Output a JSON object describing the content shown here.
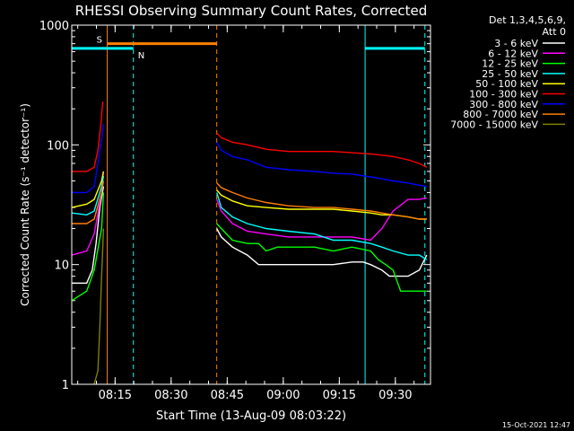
{
  "chart_data": {
    "type": "line",
    "title": "RHESSI Observing Summary Count Rates, Corrected",
    "xlabel": "Start Time (13-Aug-09 08:03:22)",
    "ylabel": "Corrected Count Rate (s⁻¹ detector⁻¹)",
    "y_scale": "log",
    "ylim": [
      1,
      1000
    ],
    "xlim_minutes_after_start": [
      0,
      96
    ],
    "x_ticks": [
      {
        "label": "08:15",
        "minutes": 11.6
      },
      {
        "label": "08:30",
        "minutes": 26.6
      },
      {
        "label": "08:45",
        "minutes": 41.6
      },
      {
        "label": "09:00",
        "minutes": 56.6
      },
      {
        "label": "09:15",
        "minutes": 71.6
      },
      {
        "label": "09:30",
        "minutes": 86.6
      }
    ],
    "y_ticks": [
      {
        "label": "1",
        "value": 1
      },
      {
        "label": "10",
        "value": 10
      },
      {
        "label": "100",
        "value": 100
      },
      {
        "label": "1000",
        "value": 1000
      }
    ],
    "legend_header": [
      "Det 1,3,4,5,6,9,",
      "Att 0"
    ],
    "legend_position": "top-right (outside plot)",
    "data_gap_minutes": [
      9.5,
      38.8
    ],
    "series": [
      {
        "name": "3 - 6 keV",
        "color": "#ffffff",
        "points": [
          [
            0,
            7
          ],
          [
            4,
            7
          ],
          [
            5.5,
            9
          ],
          [
            6.5,
            15
          ],
          [
            7.5,
            30
          ],
          [
            8.5,
            45
          ],
          [
            38.8,
            20
          ],
          [
            40,
            17
          ],
          [
            43,
            14
          ],
          [
            47,
            12
          ],
          [
            50,
            10
          ],
          [
            55,
            10
          ],
          [
            60,
            10
          ],
          [
            65,
            10
          ],
          [
            70,
            10
          ],
          [
            75,
            10.5
          ],
          [
            78,
            10.5
          ],
          [
            80,
            10
          ],
          [
            83,
            9
          ],
          [
            85,
            8
          ],
          [
            88,
            8
          ],
          [
            90,
            8
          ],
          [
            93,
            9
          ],
          [
            95,
            12
          ]
        ]
      },
      {
        "name": "6 - 12 keV",
        "color": "#ff00ff",
        "points": [
          [
            0,
            12
          ],
          [
            4,
            13
          ],
          [
            6,
            18
          ],
          [
            8,
            40
          ],
          [
            8.5,
            60
          ],
          [
            38.8,
            35
          ],
          [
            40,
            28
          ],
          [
            43,
            22
          ],
          [
            47,
            19
          ],
          [
            52,
            18
          ],
          [
            58,
            17
          ],
          [
            65,
            17
          ],
          [
            70,
            17
          ],
          [
            75,
            17
          ],
          [
            80,
            16
          ],
          [
            83,
            20
          ],
          [
            86,
            28
          ],
          [
            90,
            35
          ],
          [
            93,
            35
          ],
          [
            95,
            36
          ]
        ]
      },
      {
        "name": "12 - 25 keV",
        "color": "#00ff00",
        "points": [
          [
            0,
            5
          ],
          [
            4,
            6
          ],
          [
            6,
            9
          ],
          [
            8,
            20
          ],
          [
            8.5,
            40
          ],
          [
            38.8,
            22
          ],
          [
            40,
            20
          ],
          [
            43,
            16
          ],
          [
            47,
            15
          ],
          [
            50,
            15
          ],
          [
            52,
            13
          ],
          [
            55,
            14
          ],
          [
            60,
            14
          ],
          [
            65,
            14
          ],
          [
            70,
            13
          ],
          [
            75,
            14
          ],
          [
            80,
            13
          ],
          [
            82,
            11
          ],
          [
            84,
            10
          ],
          [
            86,
            9
          ],
          [
            88,
            6
          ],
          [
            90,
            6
          ],
          [
            93,
            6
          ],
          [
            95,
            6
          ]
        ]
      },
      {
        "name": "25 - 50 keV",
        "color": "#00ffff",
        "points": [
          [
            0,
            27
          ],
          [
            4,
            26
          ],
          [
            6,
            28
          ],
          [
            8,
            45
          ],
          [
            8.5,
            55
          ],
          [
            38.8,
            40
          ],
          [
            40,
            30
          ],
          [
            43,
            25
          ],
          [
            47,
            22
          ],
          [
            52,
            20
          ],
          [
            58,
            19
          ],
          [
            65,
            18
          ],
          [
            70,
            16
          ],
          [
            75,
            16
          ],
          [
            80,
            15
          ],
          [
            83,
            14
          ],
          [
            86,
            13
          ],
          [
            90,
            12
          ],
          [
            93,
            12
          ],
          [
            95,
            11
          ]
        ]
      },
      {
        "name": "50 - 100 keV",
        "color": "#ffff00",
        "points": [
          [
            0,
            30
          ],
          [
            4,
            32
          ],
          [
            6,
            35
          ],
          [
            8,
            50
          ],
          [
            8.5,
            60
          ],
          [
            38.8,
            42
          ],
          [
            40,
            38
          ],
          [
            43,
            34
          ],
          [
            47,
            31
          ],
          [
            52,
            30
          ],
          [
            58,
            29
          ],
          [
            65,
            29
          ],
          [
            70,
            29
          ],
          [
            75,
            28
          ],
          [
            80,
            27
          ],
          [
            83,
            26
          ],
          [
            86,
            26
          ],
          [
            90,
            25
          ],
          [
            93,
            24
          ],
          [
            95,
            24
          ]
        ]
      },
      {
        "name": "100 - 300 keV",
        "color": "#ff0000",
        "points": [
          [
            0,
            60
          ],
          [
            4,
            60
          ],
          [
            6,
            65
          ],
          [
            7,
            90
          ],
          [
            7.8,
            150
          ],
          [
            8.3,
            230
          ],
          [
            38.8,
            125
          ],
          [
            40,
            115
          ],
          [
            43,
            105
          ],
          [
            47,
            100
          ],
          [
            52,
            92
          ],
          [
            58,
            88
          ],
          [
            65,
            88
          ],
          [
            70,
            88
          ],
          [
            75,
            86
          ],
          [
            80,
            84
          ],
          [
            83,
            82
          ],
          [
            86,
            80
          ],
          [
            90,
            75
          ],
          [
            93,
            70
          ],
          [
            95,
            65
          ]
        ]
      },
      {
        "name": "300 - 800 keV",
        "color": "#0000ff",
        "points": [
          [
            0,
            40
          ],
          [
            4,
            40
          ],
          [
            6,
            45
          ],
          [
            7,
            70
          ],
          [
            8,
            110
          ],
          [
            8.5,
            150
          ],
          [
            38.8,
            105
          ],
          [
            40,
            90
          ],
          [
            43,
            80
          ],
          [
            47,
            75
          ],
          [
            52,
            65
          ],
          [
            58,
            62
          ],
          [
            65,
            60
          ],
          [
            70,
            58
          ],
          [
            75,
            57
          ],
          [
            80,
            54
          ],
          [
            83,
            52
          ],
          [
            86,
            50
          ],
          [
            90,
            48
          ],
          [
            93,
            46
          ],
          [
            95,
            45
          ]
        ]
      },
      {
        "name": "800 - 7000 keV",
        "color": "#ff7f00",
        "points": [
          [
            0,
            22
          ],
          [
            4,
            22
          ],
          [
            6,
            24
          ],
          [
            8,
            40
          ],
          [
            8.5,
            50
          ],
          [
            38.8,
            48
          ],
          [
            40,
            44
          ],
          [
            43,
            40
          ],
          [
            47,
            36
          ],
          [
            52,
            33
          ],
          [
            58,
            31
          ],
          [
            65,
            30
          ],
          [
            70,
            30
          ],
          [
            75,
            29
          ],
          [
            80,
            28
          ],
          [
            83,
            27
          ],
          [
            86,
            26
          ],
          [
            90,
            25
          ],
          [
            93,
            24
          ],
          [
            95,
            24
          ]
        ]
      },
      {
        "name": "7000 - 15000 keV",
        "color": "#808000",
        "points": [
          [
            6,
            1
          ],
          [
            7,
            1.3
          ],
          [
            7.5,
            3
          ],
          [
            8,
            8
          ],
          [
            8.5,
            20
          ]
        ]
      }
    ],
    "flag_bars": [
      {
        "label": "S",
        "color": "#ff7f00",
        "start": 9.5,
        "end": 38.8,
        "level": 700
      },
      {
        "label": "N",
        "color": "#00ffff",
        "start": 0,
        "end": 16.5,
        "level": 640
      },
      {
        "label": "",
        "color": "#00ffff",
        "start": 78.5,
        "end": 94.5,
        "level": 640
      }
    ],
    "vertical_markers": [
      {
        "minutes": 0,
        "color": "#00ffff",
        "style": "solid"
      },
      {
        "minutes": 9.5,
        "color": "#ff7f00",
        "style": "solid"
      },
      {
        "minutes": 16.5,
        "color": "#00ffff",
        "style": "dashed"
      },
      {
        "minutes": 38.8,
        "color": "#ff7f00",
        "style": "dashed"
      },
      {
        "minutes": 78.5,
        "color": "#00ffff",
        "style": "solid"
      },
      {
        "minutes": 94.5,
        "color": "#00ffff",
        "style": "dashed"
      }
    ]
  },
  "footer": {
    "generated": "15-Oct-2021 12:47"
  }
}
